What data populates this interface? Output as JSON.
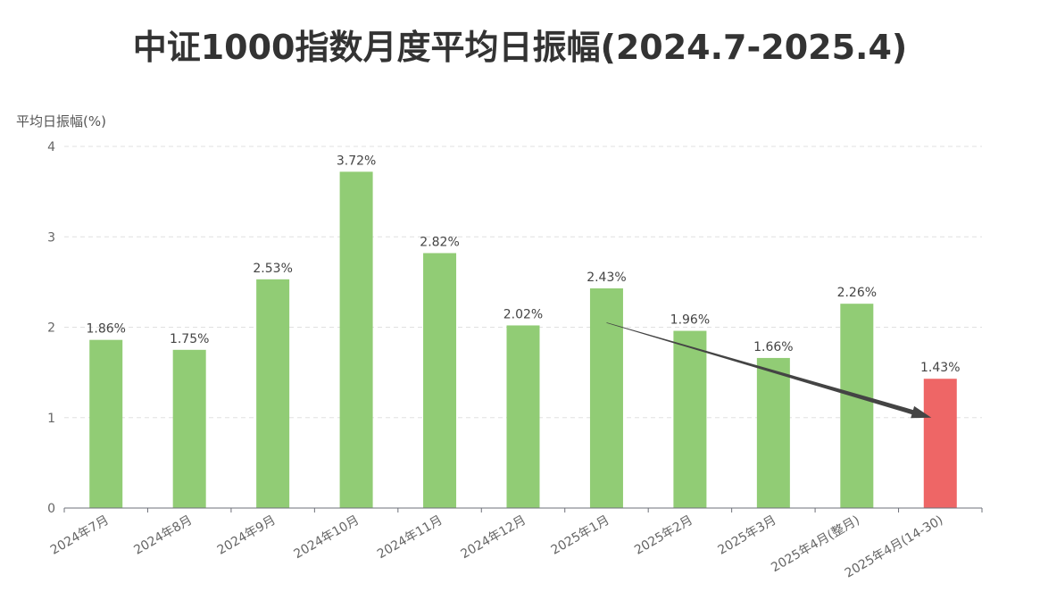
{
  "chart_data": {
    "type": "bar",
    "title": "中证1000指数月度平均日振幅(2024.7-2025.4)",
    "ylabel": "平均日振幅(%)",
    "xlabel": "",
    "ylim": [
      0,
      4
    ],
    "yticks": [
      0,
      1,
      2,
      3,
      4
    ],
    "grid": true,
    "categories": [
      "2024年7月",
      "2024年8月",
      "2024年9月",
      "2024年10月",
      "2024年11月",
      "2024年12月",
      "2025年1月",
      "2025年2月",
      "2025年3月",
      "2025年4月(整月)",
      "2025年4月(14-30)"
    ],
    "values": [
      1.86,
      1.75,
      2.53,
      3.72,
      2.82,
      2.02,
      2.43,
      1.96,
      1.66,
      2.26,
      1.43
    ],
    "data_labels": [
      "1.86%",
      "1.75%",
      "2.53%",
      "3.72%",
      "2.82%",
      "2.02%",
      "2.43%",
      "1.96%",
      "1.66%",
      "2.26%",
      "1.43%"
    ],
    "colors": {
      "bar": "#91cc75",
      "highlight": "#ee6666",
      "highlight_index": 10,
      "grid": "#e0e0e0",
      "axis": "#6e7079",
      "arrow": "#444444"
    },
    "annotations": [
      {
        "type": "arrow",
        "from": {
          "category": "2025年1月",
          "value": 2.05
        },
        "to": {
          "category": "2025年4月(14-30)",
          "value": 1.0
        }
      }
    ]
  }
}
